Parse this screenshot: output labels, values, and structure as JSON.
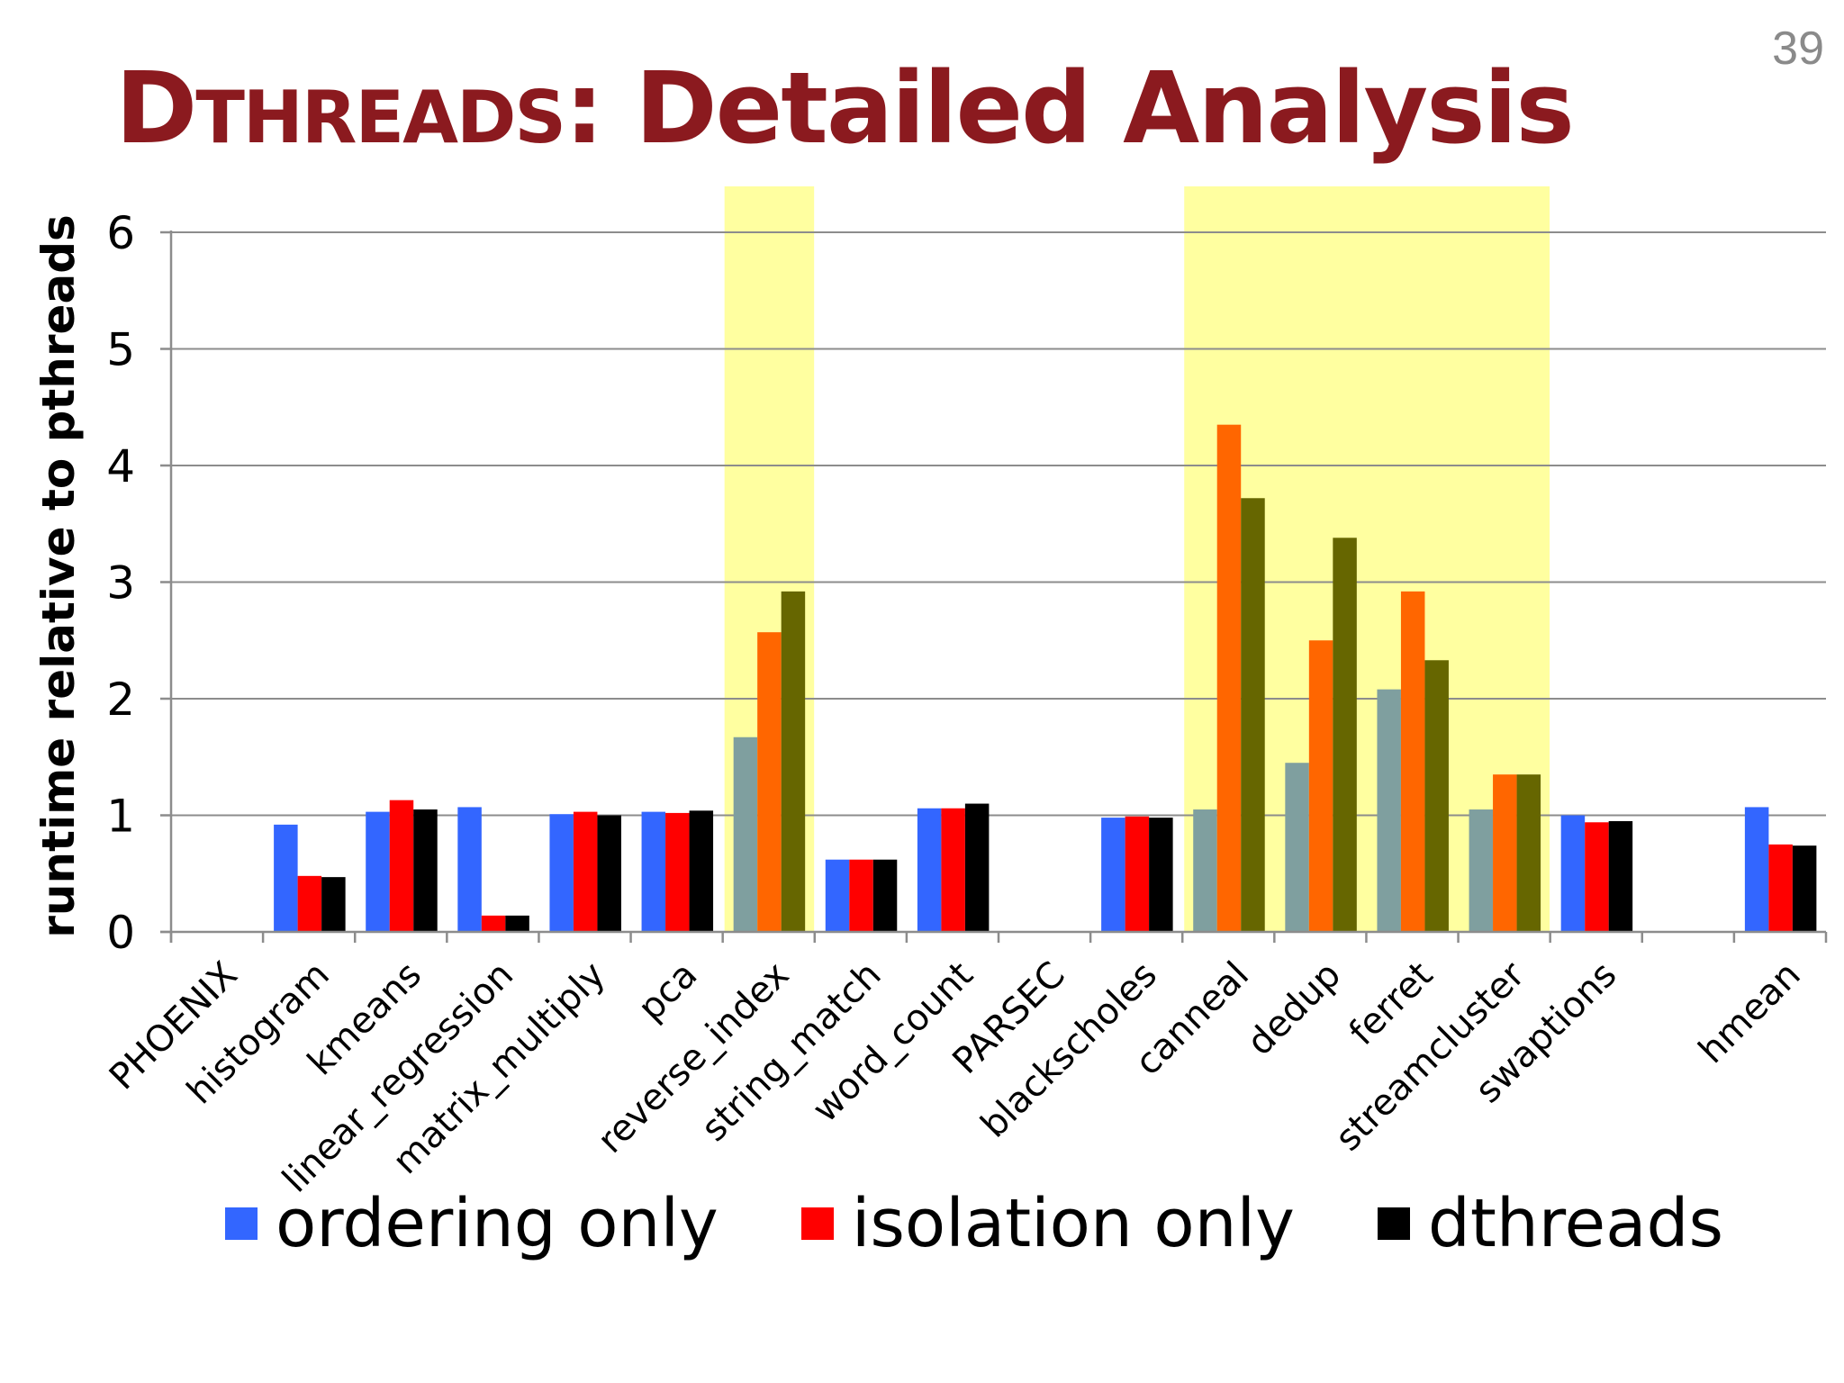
{
  "slide": {
    "number": "39",
    "title_lead": "D",
    "title_caps": "THREADS",
    "title_rest": ": Detailed Analysis"
  },
  "colors": {
    "title": "#8b1a1f",
    "highlight": "#ffffa0",
    "normal_series": [
      "#3366ff",
      "#ff0000",
      "#000000"
    ],
    "highlight_series": [
      "#7f9f9f",
      "#ff6600",
      "#666600"
    ]
  },
  "chart_data": {
    "type": "bar",
    "ylabel": "runtime relative to pthreads",
    "ylim": [
      0,
      6
    ],
    "yticks": [
      0,
      1,
      2,
      3,
      4,
      5,
      6
    ],
    "grid": true,
    "legend_position": "bottom",
    "categories": [
      "PHOENIX",
      "histogram",
      "kmeans",
      "linear_regression",
      "matrix_multiply",
      "pca",
      "reverse_index",
      "string_match",
      "word_count",
      "PARSEC",
      "blackscholes",
      "canneal",
      "dedup",
      "ferret",
      "streamcluster",
      "swaptions",
      "",
      "hmean"
    ],
    "highlighted_categories": [
      "reverse_index",
      "canneal",
      "dedup",
      "ferret",
      "streamcluster"
    ],
    "series": [
      {
        "name": "ordering only",
        "values": [
          null,
          0.92,
          1.03,
          1.07,
          1.01,
          1.03,
          1.67,
          0.62,
          1.06,
          null,
          0.98,
          1.05,
          1.45,
          2.08,
          1.05,
          1.0,
          null,
          1.07
        ]
      },
      {
        "name": "isolation only",
        "values": [
          null,
          0.48,
          1.13,
          0.14,
          1.03,
          1.02,
          2.57,
          0.62,
          1.06,
          null,
          0.99,
          4.35,
          2.5,
          2.92,
          1.35,
          0.94,
          null,
          0.75
        ]
      },
      {
        "name": "dthreads",
        "values": [
          null,
          0.47,
          1.05,
          0.14,
          1.0,
          1.04,
          2.92,
          0.62,
          1.1,
          null,
          0.98,
          3.72,
          3.38,
          2.33,
          1.35,
          0.95,
          null,
          0.74
        ]
      }
    ]
  }
}
